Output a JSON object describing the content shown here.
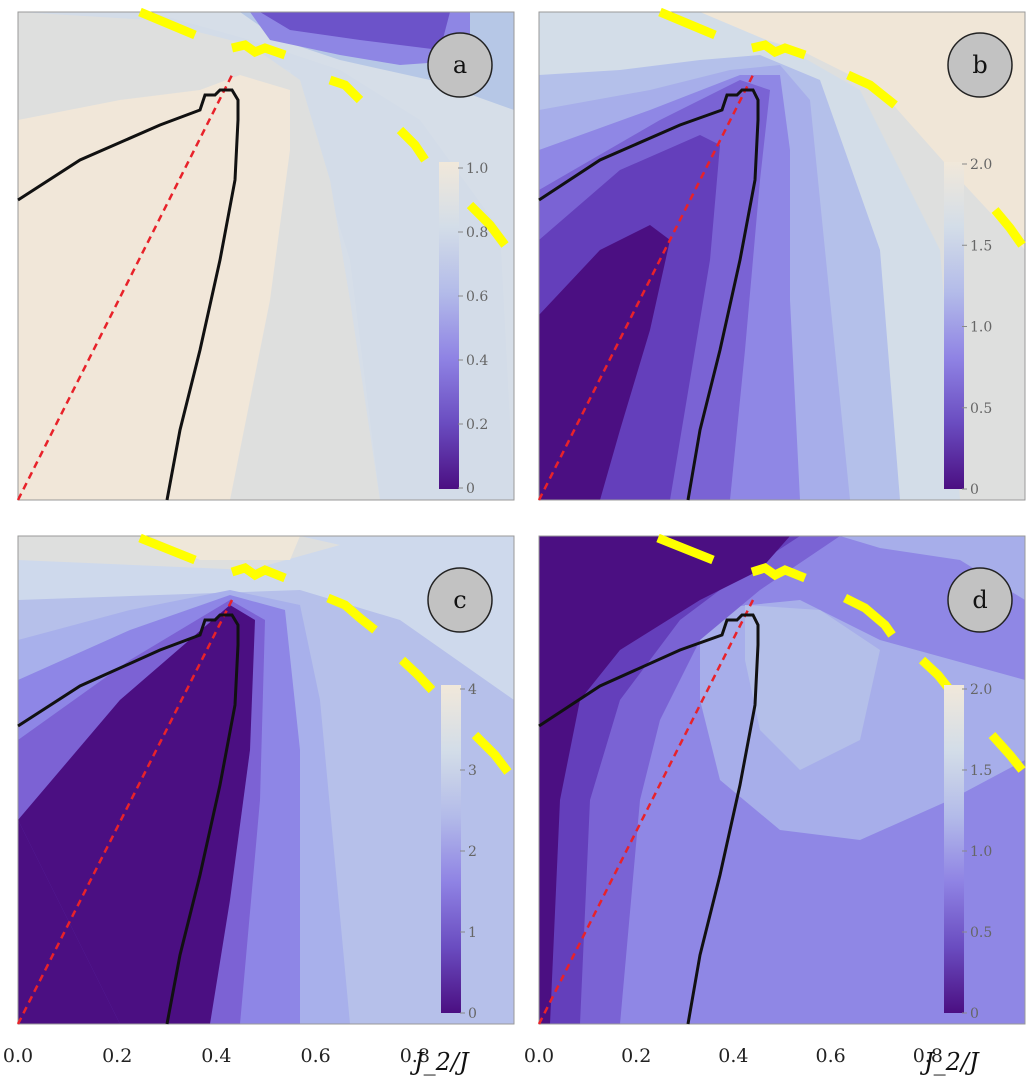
{
  "chart_data": [
    {
      "type": "heatmap",
      "panel_label": "a",
      "colorbar": {
        "range": [
          0,
          1.0
        ],
        "ticks": [
          "1.0",
          "0.8",
          "0.6",
          "0.4",
          "0.2",
          "0"
        ]
      },
      "contour_levels": [
        {
          "level": 0.95,
          "region": "left-wedge"
        },
        {
          "level": 0.85,
          "region": "center"
        },
        {
          "level": 0.75,
          "region": "right"
        },
        {
          "level": 0.7,
          "region": "top-right"
        },
        {
          "level": 0.5,
          "region": "top-right-corner"
        }
      ]
    },
    {
      "type": "heatmap",
      "panel_label": "b",
      "colorbar": {
        "range": [
          0,
          2.0
        ],
        "ticks": [
          "2.0",
          "1.5",
          "1.0",
          "0.5",
          "0"
        ]
      },
      "contour_levels": [
        0.05,
        0.3,
        0.6,
        0.9,
        1.2,
        1.5,
        1.7,
        1.9
      ]
    },
    {
      "type": "heatmap",
      "panel_label": "c",
      "colorbar": {
        "range": [
          0,
          4
        ],
        "ticks": [
          "4",
          "3",
          "2",
          "1",
          "0"
        ]
      },
      "contour_levels": [
        0.1,
        0.7,
        1.2,
        1.7,
        2.2,
        2.8,
        3.2,
        3.6
      ]
    },
    {
      "type": "heatmap",
      "panel_label": "d",
      "colorbar": {
        "range": [
          0,
          2.0
        ],
        "ticks": [
          "2.0",
          "1.5",
          "1.0",
          "0.5",
          "0"
        ]
      },
      "contour_levels": [
        0.05,
        0.3,
        0.55,
        0.8,
        1.0
      ]
    }
  ],
  "x_axis": {
    "label": "J_2/J",
    "ticks": [
      "0.0",
      "0.2",
      "0.4",
      "0.6",
      "0.8"
    ],
    "range": [
      0,
      1.0
    ]
  },
  "overlay_lines": [
    {
      "style": "dashed",
      "color": "#e8222a",
      "from": [
        0,
        0
      ],
      "to": [
        0.5,
        0.86
      ]
    },
    {
      "style": "solid",
      "color": "#111111",
      "meaning": "phase boundary"
    },
    {
      "style": "thick-dashed",
      "color": "#ffff00",
      "meaning": "upper boundary"
    }
  ],
  "colors": {
    "scale": [
      "#4b0f82",
      "#6f50c0",
      "#8f83e4",
      "#afb4e8",
      "#ccd6ec",
      "#dedfe0",
      "#f1e8da"
    ],
    "panel_border": "#999999"
  }
}
